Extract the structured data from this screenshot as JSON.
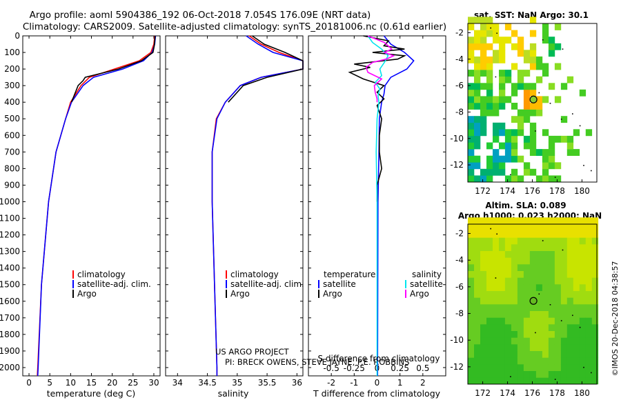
{
  "header": {
    "line1": "Argo profile: aoml 5904386_192 06-Oct-2018 7.054S 176.09E (NRT data)",
    "line2": "Climatology: CARS2009. Satellite-adjusted climatology: synTS_20181006.nc (0.61d earlier)"
  },
  "colors": {
    "climatology": "#ff0000",
    "satellite_adj": "#0000ff",
    "argo": "#000000",
    "salinity_satellite": "#00e5ee",
    "salinity_argo": "#ff00ff"
  },
  "depth_axis": {
    "ylim": [
      2050,
      0
    ],
    "ticks": [
      "0",
      "100",
      "200",
      "300",
      "400",
      "500",
      "600",
      "700",
      "800",
      "900",
      "1000",
      "1100",
      "1200",
      "1300",
      "1400",
      "1500",
      "1600",
      "1700",
      "1800",
      "1900",
      "2000"
    ]
  },
  "chart_data": [
    {
      "type": "line",
      "xlabel": "temperature (deg C)",
      "xlim": [
        -1.5,
        31.5
      ],
      "xticks": [
        "0",
        "5",
        "10",
        "15",
        "20",
        "25",
        "30"
      ],
      "legend": [
        "climatology",
        "satellite-adj. clim.",
        "Argo"
      ],
      "series": [
        {
          "name": "climatology",
          "color": "#ff0000",
          "depth": [
            0,
            50,
            100,
            150,
            200,
            250,
            300,
            400,
            500,
            700,
            1000,
            1500,
            2000,
            2050
          ],
          "values": [
            30.2,
            30.0,
            29.3,
            26.5,
            20.5,
            14.5,
            12.5,
            10.0,
            8.8,
            6.5,
            4.7,
            3.0,
            2.1,
            2.0
          ]
        },
        {
          "name": "satellite-adj. clim.",
          "color": "#0000ff",
          "depth": [
            0,
            50,
            100,
            150,
            200,
            250,
            300,
            400,
            500,
            700,
            1000,
            1500,
            2000,
            2050
          ],
          "values": [
            30.4,
            30.2,
            29.6,
            27.5,
            22.5,
            15.5,
            13.0,
            10.2,
            8.8,
            6.5,
            4.7,
            3.0,
            2.2,
            2.1
          ]
        },
        {
          "name": "Argo",
          "color": "#000000",
          "depth": [
            0,
            60,
            100,
            150,
            200,
            250,
            270,
            300,
            400
          ],
          "values": [
            30.3,
            30.1,
            29.8,
            27.0,
            21.5,
            13.5,
            13.0,
            11.8,
            10.2
          ]
        }
      ]
    },
    {
      "type": "line",
      "xlabel": "salinity",
      "xlim": [
        33.8,
        36.1
      ],
      "xticks": [
        "34",
        "34.5",
        "35",
        "35.5",
        "36"
      ],
      "legend": [
        "climatology",
        "satellite-adj. clim.",
        "Argo"
      ],
      "series": [
        {
          "name": "climatology",
          "color": "#ff0000",
          "depth": [
            0,
            50,
            100,
            150,
            200,
            250,
            300,
            400,
            500,
            700,
            1000,
            1500,
            2000,
            2050
          ],
          "values": [
            35.2,
            35.4,
            35.7,
            36.2,
            36.1,
            35.4,
            35.05,
            34.8,
            34.65,
            34.58,
            34.58,
            34.62,
            34.66,
            34.66
          ]
        },
        {
          "name": "satellite-adj. clim.",
          "color": "#0000ff",
          "depth": [
            0,
            50,
            100,
            150,
            200,
            250,
            300,
            400,
            500,
            700,
            1000,
            1500,
            2000,
            2050
          ],
          "values": [
            35.15,
            35.35,
            35.6,
            36.1,
            36.1,
            35.4,
            35.05,
            34.8,
            34.66,
            34.58,
            34.58,
            34.62,
            34.66,
            34.66
          ]
        },
        {
          "name": "Argo",
          "color": "#000000",
          "depth": [
            0,
            50,
            100,
            150,
            200,
            250,
            300,
            400
          ],
          "values": [
            35.25,
            35.45,
            35.8,
            36.15,
            36.1,
            35.5,
            35.1,
            34.85
          ]
        }
      ]
    },
    {
      "type": "line",
      "xlabel": "T difference from climatology",
      "xlabel_top": "S difference from climatology",
      "xlim": [
        -3,
        3
      ],
      "xticks": [
        "-2",
        "-1",
        "0",
        "1",
        "2"
      ],
      "xticks_top": [
        "-0.5",
        "-0.25",
        "0",
        "0.25",
        "0.5"
      ],
      "legend_temperature": {
        "title": "temperature",
        "items": [
          "satellite",
          "Argo"
        ]
      },
      "legend_salinity": {
        "title": "salinity",
        "items": [
          "satellite",
          "Argo"
        ]
      },
      "series": [
        {
          "name": "temperature satellite",
          "color": "#0000ff",
          "depth": [
            0,
            50,
            100,
            150,
            200,
            250,
            300,
            350,
            400,
            500,
            700,
            1000,
            1500,
            2000,
            2050
          ],
          "values": [
            0.3,
            0.6,
            1.2,
            1.6,
            1.3,
            0.6,
            0.35,
            0.3,
            0.2,
            0.1,
            0.08,
            0.04,
            0.03,
            0.02,
            0.02
          ]
        },
        {
          "name": "temperature Argo",
          "color": "#000000",
          "depth": [
            0,
            30,
            60,
            80,
            100,
            120,
            140,
            170,
            190,
            220,
            260,
            300,
            340,
            380,
            420,
            500,
            600,
            700,
            800,
            900,
            1000
          ],
          "values": [
            -0.6,
            0.5,
            0.3,
            1.2,
            -0.2,
            1.2,
            0.9,
            -1.0,
            -0.3,
            -1.2,
            -0.6,
            0.3,
            0.0,
            0.3,
            0.0,
            0.2,
            0.1,
            0.1,
            0.2,
            0.0,
            0.0
          ]
        },
        {
          "name": "salinity satellite",
          "color": "#00e5ee",
          "depth": [
            0,
            40,
            80,
            120,
            160,
            200,
            240,
            280,
            320,
            360,
            400,
            500,
            700,
            1000,
            1500,
            2000,
            2050
          ],
          "values": [
            -0.1,
            -0.05,
            0.05,
            0.12,
            0.08,
            0.03,
            0.05,
            -0.02,
            0.03,
            0.01,
            0.02,
            0.0,
            -0.01,
            0.0,
            0.0,
            0.0,
            0.0
          ]
        },
        {
          "name": "salinity Argo",
          "color": "#ff00ff",
          "depth": [
            0,
            40,
            80,
            100,
            120,
            140,
            160,
            190,
            220,
            260,
            300,
            340,
            380,
            400
          ],
          "values": [
            -0.1,
            0.08,
            0.16,
            0.08,
            0.18,
            0.1,
            -0.05,
            -0.12,
            -0.1,
            0.05,
            -0.03,
            -0.02,
            0.0,
            0.0
          ]
        }
      ]
    },
    {
      "type": "heatmap",
      "title": "sat. SST: NaN Argo: 30.1",
      "xticks": [
        "172",
        "174",
        "176",
        "178",
        "180"
      ],
      "yticks": [
        "-2",
        "-4",
        "-6",
        "-8",
        "-10",
        "-12"
      ],
      "xlim": [
        170.8,
        181.2
      ],
      "ylim": [
        -13.3,
        -1.3
      ],
      "argo_position": {
        "lon": 176.09,
        "lat": -7.054
      }
    },
    {
      "type": "heatmap",
      "title_line1": "Altim. SLA: 0.089",
      "title_line2": "Argo h1000: 0.023 h2000: NaN",
      "xticks": [
        "172",
        "174",
        "176",
        "178",
        "180"
      ],
      "yticks": [
        "-2",
        "-4",
        "-6",
        "-8",
        "-10",
        "-12"
      ],
      "xlim": [
        170.8,
        181.2
      ],
      "ylim": [
        -13.3,
        -1.3
      ],
      "argo_position": {
        "lon": 176.09,
        "lat": -7.054
      }
    }
  ],
  "credits": {
    "line1": "US ARGO PROJECT",
    "line2": "PI: BRECK OWENS, STEVE JAYNE, P.E. ROBBINS",
    "stamp": "©IMOS 20-Dec-2018 04:38:57"
  }
}
